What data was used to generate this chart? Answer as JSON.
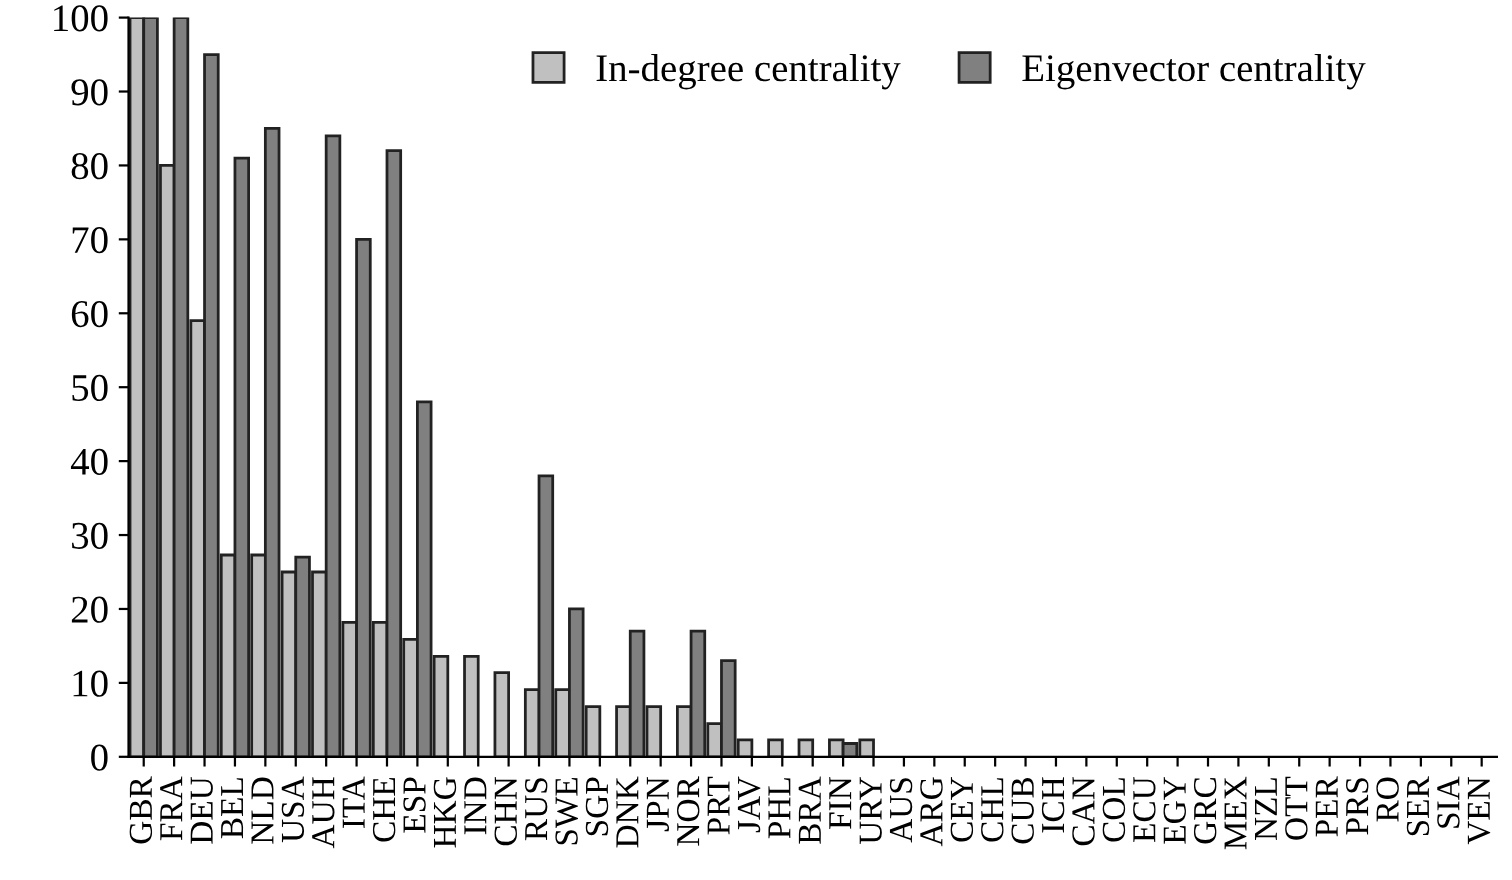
{
  "chart_data": {
    "type": "bar",
    "categories": [
      "GBR",
      "FRA",
      "DEU",
      "BEL",
      "NLD",
      "USA",
      "AUH",
      "ITA",
      "CHE",
      "ESP",
      "HKG",
      "IND",
      "CHN",
      "RUS",
      "SWE",
      "SGP",
      "DNK",
      "JPN",
      "NOR",
      "PRT",
      "JAV",
      "PHL",
      "BRA",
      "FIN",
      "URY",
      "AUS",
      "ARG",
      "CEY",
      "CHL",
      "CUB",
      "ICH",
      "CAN",
      "COL",
      "ECU",
      "EGY",
      "GRC",
      "MEX",
      "NZL",
      "OTT",
      "PER",
      "PRS",
      "RO",
      "SER",
      "SIA",
      "VEN"
    ],
    "series": [
      {
        "name": "In-degree centrality",
        "color": "#c0c0c0",
        "values": [
          100,
          80,
          59,
          27.3,
          27.3,
          25,
          25,
          18.2,
          18.2,
          15.9,
          13.6,
          13.6,
          11.4,
          9.1,
          9.1,
          6.8,
          6.8,
          6.8,
          6.8,
          4.5,
          2.3,
          2.3,
          2.3,
          2.3,
          2.3,
          0,
          0,
          0,
          0,
          0,
          0,
          0,
          0,
          0,
          0,
          0,
          0,
          0,
          0,
          0,
          0,
          0,
          0,
          0,
          0
        ]
      },
      {
        "name": "Eigenvector centrality",
        "color": "#808080",
        "values": [
          100,
          100,
          95,
          81,
          85,
          27,
          84,
          70,
          82,
          48,
          0,
          0,
          0,
          38,
          20,
          0,
          17,
          0,
          17,
          13,
          0,
          0,
          0,
          1.8,
          0,
          0,
          0,
          0,
          0,
          0,
          0,
          0,
          0,
          0,
          0,
          0,
          0,
          0,
          0,
          0,
          0,
          0,
          0,
          0,
          0
        ]
      }
    ],
    "ylim": [
      0,
      100
    ],
    "yticks": [
      0,
      10,
      20,
      30,
      40,
      50,
      60,
      70,
      80,
      90,
      100
    ],
    "grid": false,
    "legend": "top right"
  }
}
